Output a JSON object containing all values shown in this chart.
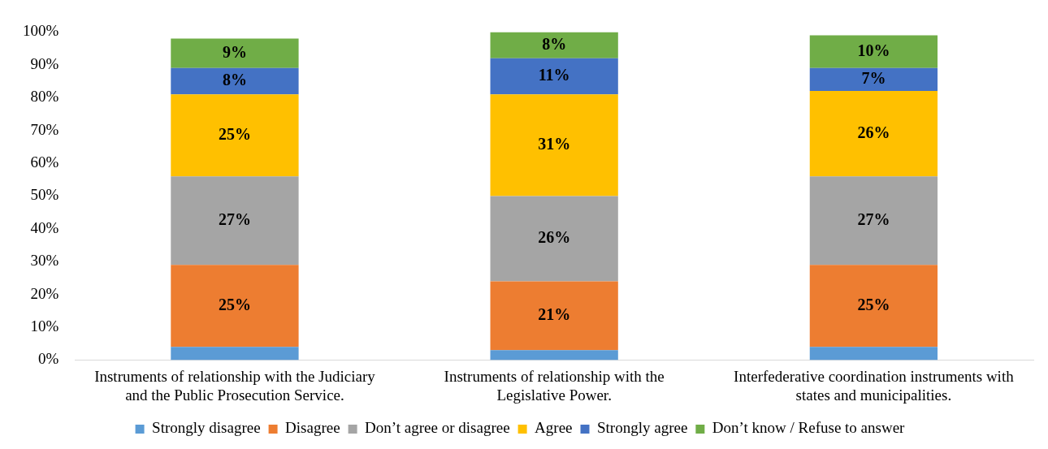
{
  "chart_data": {
    "type": "bar",
    "stacked": true,
    "categories": [
      "Instruments of relationship with the Judiciary and the Public Prosecution Service.",
      "Instruments of relationship with the Legislative Power.",
      "Interfederative coordination instruments with states and municipalities."
    ],
    "series": [
      {
        "name": "Strongly disagree",
        "color": "#5b9bd5",
        "values": [
          4,
          3,
          4
        ],
        "value_labels": [
          null,
          null,
          null
        ]
      },
      {
        "name": "Disagree",
        "color": "#ed7d31",
        "values": [
          25,
          21,
          25
        ],
        "value_labels": [
          "25%",
          "21%",
          "25%"
        ]
      },
      {
        "name": "Don’t agree or disagree",
        "color": "#a5a5a5",
        "values": [
          27,
          26,
          27
        ],
        "value_labels": [
          "27%",
          "26%",
          "27%"
        ]
      },
      {
        "name": "Agree",
        "color": "#ffc000",
        "values": [
          25,
          31,
          26
        ],
        "value_labels": [
          "25%",
          "31%",
          "26%"
        ]
      },
      {
        "name": "Strongly agree",
        "color": "#4472c4",
        "values": [
          8,
          11,
          7
        ],
        "value_labels": [
          "8%",
          "11%",
          "7%"
        ]
      },
      {
        "name": "Don’t know / Refuse to answer",
        "color": "#70ad47",
        "values": [
          9,
          8,
          10
        ],
        "value_labels": [
          "9%",
          "8%",
          "10%"
        ]
      }
    ],
    "ylim": [
      0,
      100
    ],
    "yticks": [
      {
        "value": 0,
        "label": "0%"
      },
      {
        "value": 10,
        "label": "10%"
      },
      {
        "value": 20,
        "label": "20%"
      },
      {
        "value": 30,
        "label": "30%"
      },
      {
        "value": 40,
        "label": "40%"
      },
      {
        "value": 50,
        "label": "50%"
      },
      {
        "value": 60,
        "label": "60%"
      },
      {
        "value": 70,
        "label": "70%"
      },
      {
        "value": 80,
        "label": "80%"
      },
      {
        "value": 90,
        "label": "90%"
      },
      {
        "value": 100,
        "label": "100%"
      }
    ],
    "grid": false,
    "legend": "bottom"
  }
}
